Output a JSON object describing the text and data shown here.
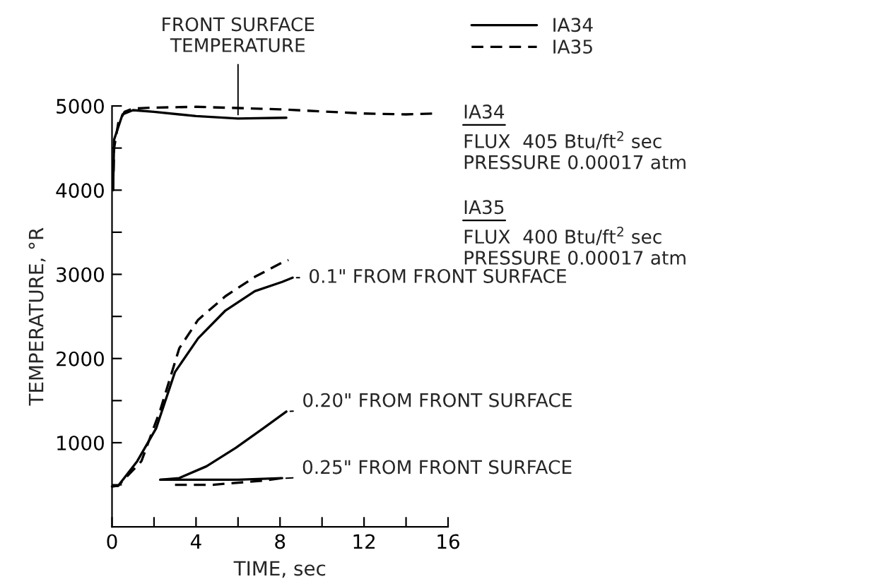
{
  "chart_data": {
    "type": "line",
    "xlabel": "TIME, sec",
    "ylabel": "TEMPERATURE, °R",
    "xlim": [
      0,
      16
    ],
    "xticks": [
      0,
      {
        "value": 2,
        "label": null
      },
      4,
      {
        "value": 6,
        "label": null
      },
      8,
      {
        "value": 10,
        "label": null
      },
      12,
      {
        "value": 14,
        "label": null
      },
      16
    ],
    "ylim": [
      0,
      5000
    ],
    "yticks": [
      {
        "value": 500,
        "label": null
      },
      1000,
      {
        "value": 1500,
        "label": null
      },
      2000,
      {
        "value": 2500,
        "label": null
      },
      3000,
      {
        "value": 3500,
        "label": null
      },
      4000,
      {
        "value": 4500,
        "label": null
      },
      5000
    ],
    "grid": false,
    "legend": "top right",
    "marker": "none",
    "series": [
      {
        "name": "IA34",
        "color": "#000000",
        "line_style": "solid",
        "x": [
          0.05,
          0.1,
          0.5,
          1,
          2,
          4,
          6,
          8.3
        ],
        "values": [
          4000,
          4600,
          4900,
          4950,
          4930,
          4880,
          4850,
          4860
        ]
      },
      {
        "name": "IA35",
        "color": "#000000",
        "line_style": "dashed",
        "x": [
          0.05,
          0.1,
          0.3,
          0.6,
          1,
          2,
          4,
          8,
          12,
          14,
          15.4
        ],
        "values": [
          4000,
          4500,
          4800,
          4930,
          4970,
          4980,
          4990,
          4960,
          4910,
          4900,
          4910
        ]
      },
      {
        "color": "#000000",
        "line_style": "solid",
        "x": [
          0,
          0.3,
          1.2,
          2.1,
          3,
          4.1,
          5.4,
          6.8,
          8.1,
          8.6
        ],
        "values": [
          480,
          490,
          780,
          1170,
          1840,
          2240,
          2570,
          2800,
          2910,
          2960
        ]
      },
      {
        "color": "#000000",
        "line_style": "dashed",
        "x": [
          0,
          0.3,
          1.4,
          2.3,
          3.2,
          4.1,
          5.4,
          6.8,
          8.1,
          8.4
        ],
        "values": [
          480,
          490,
          780,
          1390,
          2120,
          2460,
          2740,
          2970,
          3140,
          3170
        ]
      },
      {
        "color": "#000000",
        "line_style": "solid",
        "x": [
          2.3,
          3.2,
          4.5,
          5.9,
          7.2,
          8.3
        ],
        "values": [
          560,
          580,
          720,
          940,
          1170,
          1370
        ]
      },
      {
        "color": "#000000",
        "line_style": "solid",
        "x": [
          2.3,
          4,
          6,
          8.1
        ],
        "values": [
          560,
          560,
          560,
          580
        ]
      },
      {
        "color": "#000000",
        "line_style": "dashed",
        "x": [
          3,
          4.8,
          7.2,
          8.1
        ],
        "values": [
          500,
          500,
          550,
          580
        ]
      }
    ],
    "annotations": [
      {
        "text": "FRONT SURFACE\nTEMPERATURE",
        "x": 6,
        "y": 4850
      },
      {
        "text": "0.1\" FROM FRONT SURFACE",
        "x": 8.6,
        "y": 2960
      },
      {
        "text": "0.20\" FROM FRONT SURFACE",
        "x": 8.3,
        "y": 1370
      },
      {
        "text": "0.25\" FROM FRONT SURFACE",
        "x": 8.1,
        "y": 575
      },
      "IA34",
      "FLUX  405 Btu/ft$^{2}$ sec\nPRESSURE 0.00017 atm",
      "IA35",
      "FLUX  400 Btu/ft$^{2}$ sec\nPRESSURE 0.00017 atm"
    ]
  }
}
